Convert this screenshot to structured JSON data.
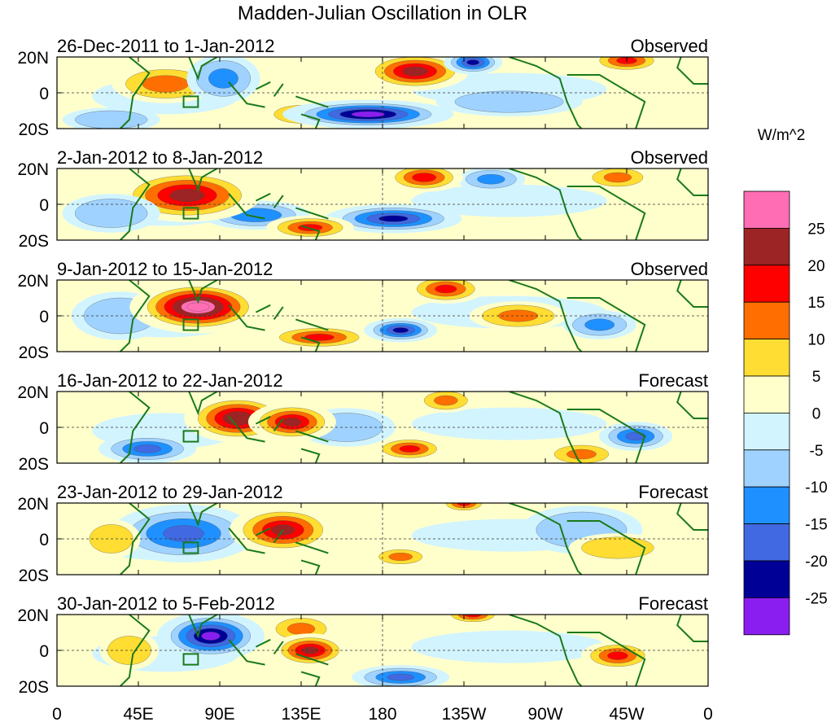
{
  "chart_data": {
    "type": "heatmap",
    "title": "Madden-Julian Oscillation in OLR",
    "colorbar": {
      "label": "W/m^2",
      "levels": [
        "25",
        "20",
        "15",
        "10",
        "5",
        "0",
        "-5",
        "-10",
        "-15",
        "-20",
        "-25"
      ],
      "colors": [
        "#ff6eb4",
        "#9c2424",
        "#ff0000",
        "#ff6e00",
        "#ffdd33",
        "#ffffcc",
        "#d2f4ff",
        "#a0d2ff",
        "#1e90ff",
        "#4169e1",
        "#000096",
        "#8a1ef0"
      ]
    },
    "x_ticks": [
      {
        "lon": 0,
        "label": "0"
      },
      {
        "lon": 45,
        "label": "45E"
      },
      {
        "lon": 90,
        "label": "90E"
      },
      {
        "lon": 135,
        "label": "135E"
      },
      {
        "lon": 180,
        "label": "180"
      },
      {
        "lon": 225,
        "label": "135W"
      },
      {
        "lon": 270,
        "label": "90W"
      },
      {
        "lon": 315,
        "label": "45W"
      },
      {
        "lon": 360,
        "label": "0"
      }
    ],
    "y_ticks": [
      {
        "lat": 20,
        "label": "20N"
      },
      {
        "lat": 0,
        "label": "0"
      },
      {
        "lat": -20,
        "label": "20S"
      }
    ],
    "xlim": [
      0,
      360
    ],
    "ylim": [
      -20,
      20
    ],
    "panels": [
      {
        "period": "26-Dec-2011 to 1-Jan-2012",
        "kind": "Observed",
        "blobs": [
          {
            "lon": 30,
            "lat": -15,
            "v": -6,
            "w": 20,
            "h": 5
          },
          {
            "lon": 250,
            "lat": -5,
            "v": -9,
            "w": 30,
            "h": 6
          },
          {
            "lon": 60,
            "lat": 5,
            "v": 12,
            "w": 22,
            "h": 8
          },
          {
            "lon": 92,
            "lat": 8,
            "v": -11,
            "w": 15,
            "h": 10
          },
          {
            "lon": 135,
            "lat": -12,
            "v": 11,
            "w": 15,
            "h": 5
          },
          {
            "lon": 198,
            "lat": 12,
            "v": 22,
            "w": 22,
            "h": 8
          },
          {
            "lon": 230,
            "lat": 17,
            "v": -21,
            "w": 12,
            "h": 5
          },
          {
            "lon": 172,
            "lat": -12,
            "v": -27,
            "w": 35,
            "h": 6
          },
          {
            "lon": 315,
            "lat": 18,
            "v": 16,
            "w": 15,
            "h": 5
          }
        ]
      },
      {
        "period": "2-Jan-2012 to 8-Jan-2012",
        "kind": "Observed",
        "blobs": [
          {
            "lon": 110,
            "lat": -6,
            "v": -14,
            "w": 22,
            "h": 6
          },
          {
            "lon": 240,
            "lat": 14,
            "v": -11,
            "w": 14,
            "h": 5
          },
          {
            "lon": 72,
            "lat": 5,
            "v": 22,
            "w": 30,
            "h": 11
          },
          {
            "lon": 203,
            "lat": 15,
            "v": 17,
            "w": 16,
            "h": 6
          },
          {
            "lon": 186,
            "lat": -8,
            "v": -21,
            "w": 28,
            "h": 6
          },
          {
            "lon": 140,
            "lat": -13,
            "v": 16,
            "w": 18,
            "h": 5
          },
          {
            "lon": 310,
            "lat": 15,
            "v": 11,
            "w": 14,
            "h": 5
          },
          {
            "lon": 30,
            "lat": -5,
            "v": -6,
            "w": 20,
            "h": 8
          }
        ]
      },
      {
        "period": "9-Jan-2012 to 15-Jan-2012",
        "kind": "Observed",
        "blobs": [
          {
            "lon": 35,
            "lat": 0,
            "v": -7,
            "w": 20,
            "h": 10
          },
          {
            "lon": 300,
            "lat": -5,
            "v": -11,
            "w": 15,
            "h": 6
          },
          {
            "lon": 255,
            "lat": 0,
            "v": 11,
            "w": 20,
            "h": 6
          },
          {
            "lon": 78,
            "lat": 5,
            "v": 30,
            "w": 28,
            "h": 11
          },
          {
            "lon": 215,
            "lat": 15,
            "v": 16,
            "w": 16,
            "h": 6
          },
          {
            "lon": 145,
            "lat": -12,
            "v": 16,
            "w": 22,
            "h": 5
          },
          {
            "lon": 190,
            "lat": -8,
            "v": -21,
            "w": 15,
            "h": 5
          }
        ]
      },
      {
        "period": "16-Jan-2012 to 22-Jan-2012",
        "kind": "Forecast",
        "blobs": [
          {
            "lon": 160,
            "lat": 0,
            "v": -6,
            "w": 20,
            "h": 8
          },
          {
            "lon": 50,
            "lat": -12,
            "v": -16,
            "w": 20,
            "h": 6
          },
          {
            "lon": 100,
            "lat": 5,
            "v": 24,
            "w": 22,
            "h": 10
          },
          {
            "lon": 130,
            "lat": 3,
            "v": 21,
            "w": 18,
            "h": 8
          },
          {
            "lon": 195,
            "lat": -12,
            "v": 16,
            "w": 15,
            "h": 5
          },
          {
            "lon": 320,
            "lat": -5,
            "v": -16,
            "w": 15,
            "h": 6
          },
          {
            "lon": 215,
            "lat": 15,
            "v": 11,
            "w": 12,
            "h": 5
          },
          {
            "lon": 290,
            "lat": -15,
            "v": 11,
            "w": 15,
            "h": 5
          }
        ]
      },
      {
        "period": "23-Jan-2012 to 29-Jan-2012",
        "kind": "Forecast",
        "blobs": [
          {
            "lon": 70,
            "lat": 3,
            "v": -16,
            "w": 30,
            "h": 12
          },
          {
            "lon": 290,
            "lat": 5,
            "v": -7,
            "w": 25,
            "h": 10
          },
          {
            "lon": 30,
            "lat": 0,
            "v": 6,
            "w": 12,
            "h": 8
          },
          {
            "lon": 310,
            "lat": -5,
            "v": 6,
            "w": 20,
            "h": 6
          },
          {
            "lon": 125,
            "lat": 5,
            "v": 21,
            "w": 22,
            "h": 10
          },
          {
            "lon": 190,
            "lat": -10,
            "v": 11,
            "w": 12,
            "h": 4
          },
          {
            "lon": 225,
            "lat": 20,
            "v": 16,
            "w": 10,
            "h": 4
          }
        ]
      },
      {
        "period": "30-Jan-2012 to 5-Feb-2012",
        "kind": "Forecast",
        "blobs": [
          {
            "lon": 85,
            "lat": 8,
            "v": -26,
            "w": 22,
            "h": 10
          },
          {
            "lon": 190,
            "lat": -15,
            "v": -16,
            "w": 20,
            "h": 5
          },
          {
            "lon": 40,
            "lat": 0,
            "v": 6,
            "w": 12,
            "h": 8
          },
          {
            "lon": 135,
            "lat": 12,
            "v": 11,
            "w": 14,
            "h": 6
          },
          {
            "lon": 140,
            "lat": 0,
            "v": 21,
            "w": 16,
            "h": 7
          },
          {
            "lon": 310,
            "lat": -3,
            "v": 16,
            "w": 15,
            "h": 6
          },
          {
            "lon": 230,
            "lat": 20,
            "v": 16,
            "w": 12,
            "h": 4
          }
        ]
      }
    ]
  }
}
